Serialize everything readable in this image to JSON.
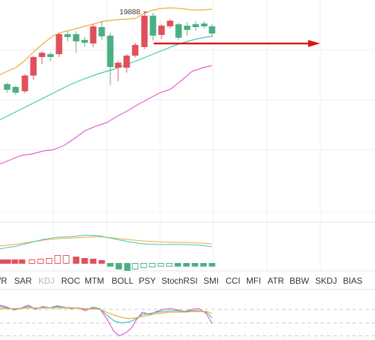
{
  "price_annotation": "19888",
  "indicator_tabs": [
    {
      "label": "WR",
      "muted": false
    },
    {
      "label": "SAR",
      "muted": false
    },
    {
      "label": "KDJ",
      "muted": true
    },
    {
      "label": "ROC",
      "muted": false
    },
    {
      "label": "MTM",
      "muted": false
    },
    {
      "label": "BOLL",
      "muted": false
    },
    {
      "label": "PSY",
      "muted": false
    },
    {
      "label": "StochRSI",
      "muted": false
    },
    {
      "label": "SMI",
      "muted": false
    },
    {
      "label": "CCI",
      "muted": false
    },
    {
      "label": "MFI",
      "muted": false
    },
    {
      "label": "ATR",
      "muted": false
    },
    {
      "label": "BBW",
      "muted": false
    },
    {
      "label": "SKDJ",
      "muted": false
    },
    {
      "label": "BIAS",
      "muted": false
    }
  ],
  "colors": {
    "up": "#4caf84",
    "down": "#e0505a",
    "upper_band": "#f0a830",
    "middle_band": "#3cc4b4",
    "lower_band": "#e05ad0",
    "arrow": "#e01515",
    "grid": "#f0f0f0"
  }
}
